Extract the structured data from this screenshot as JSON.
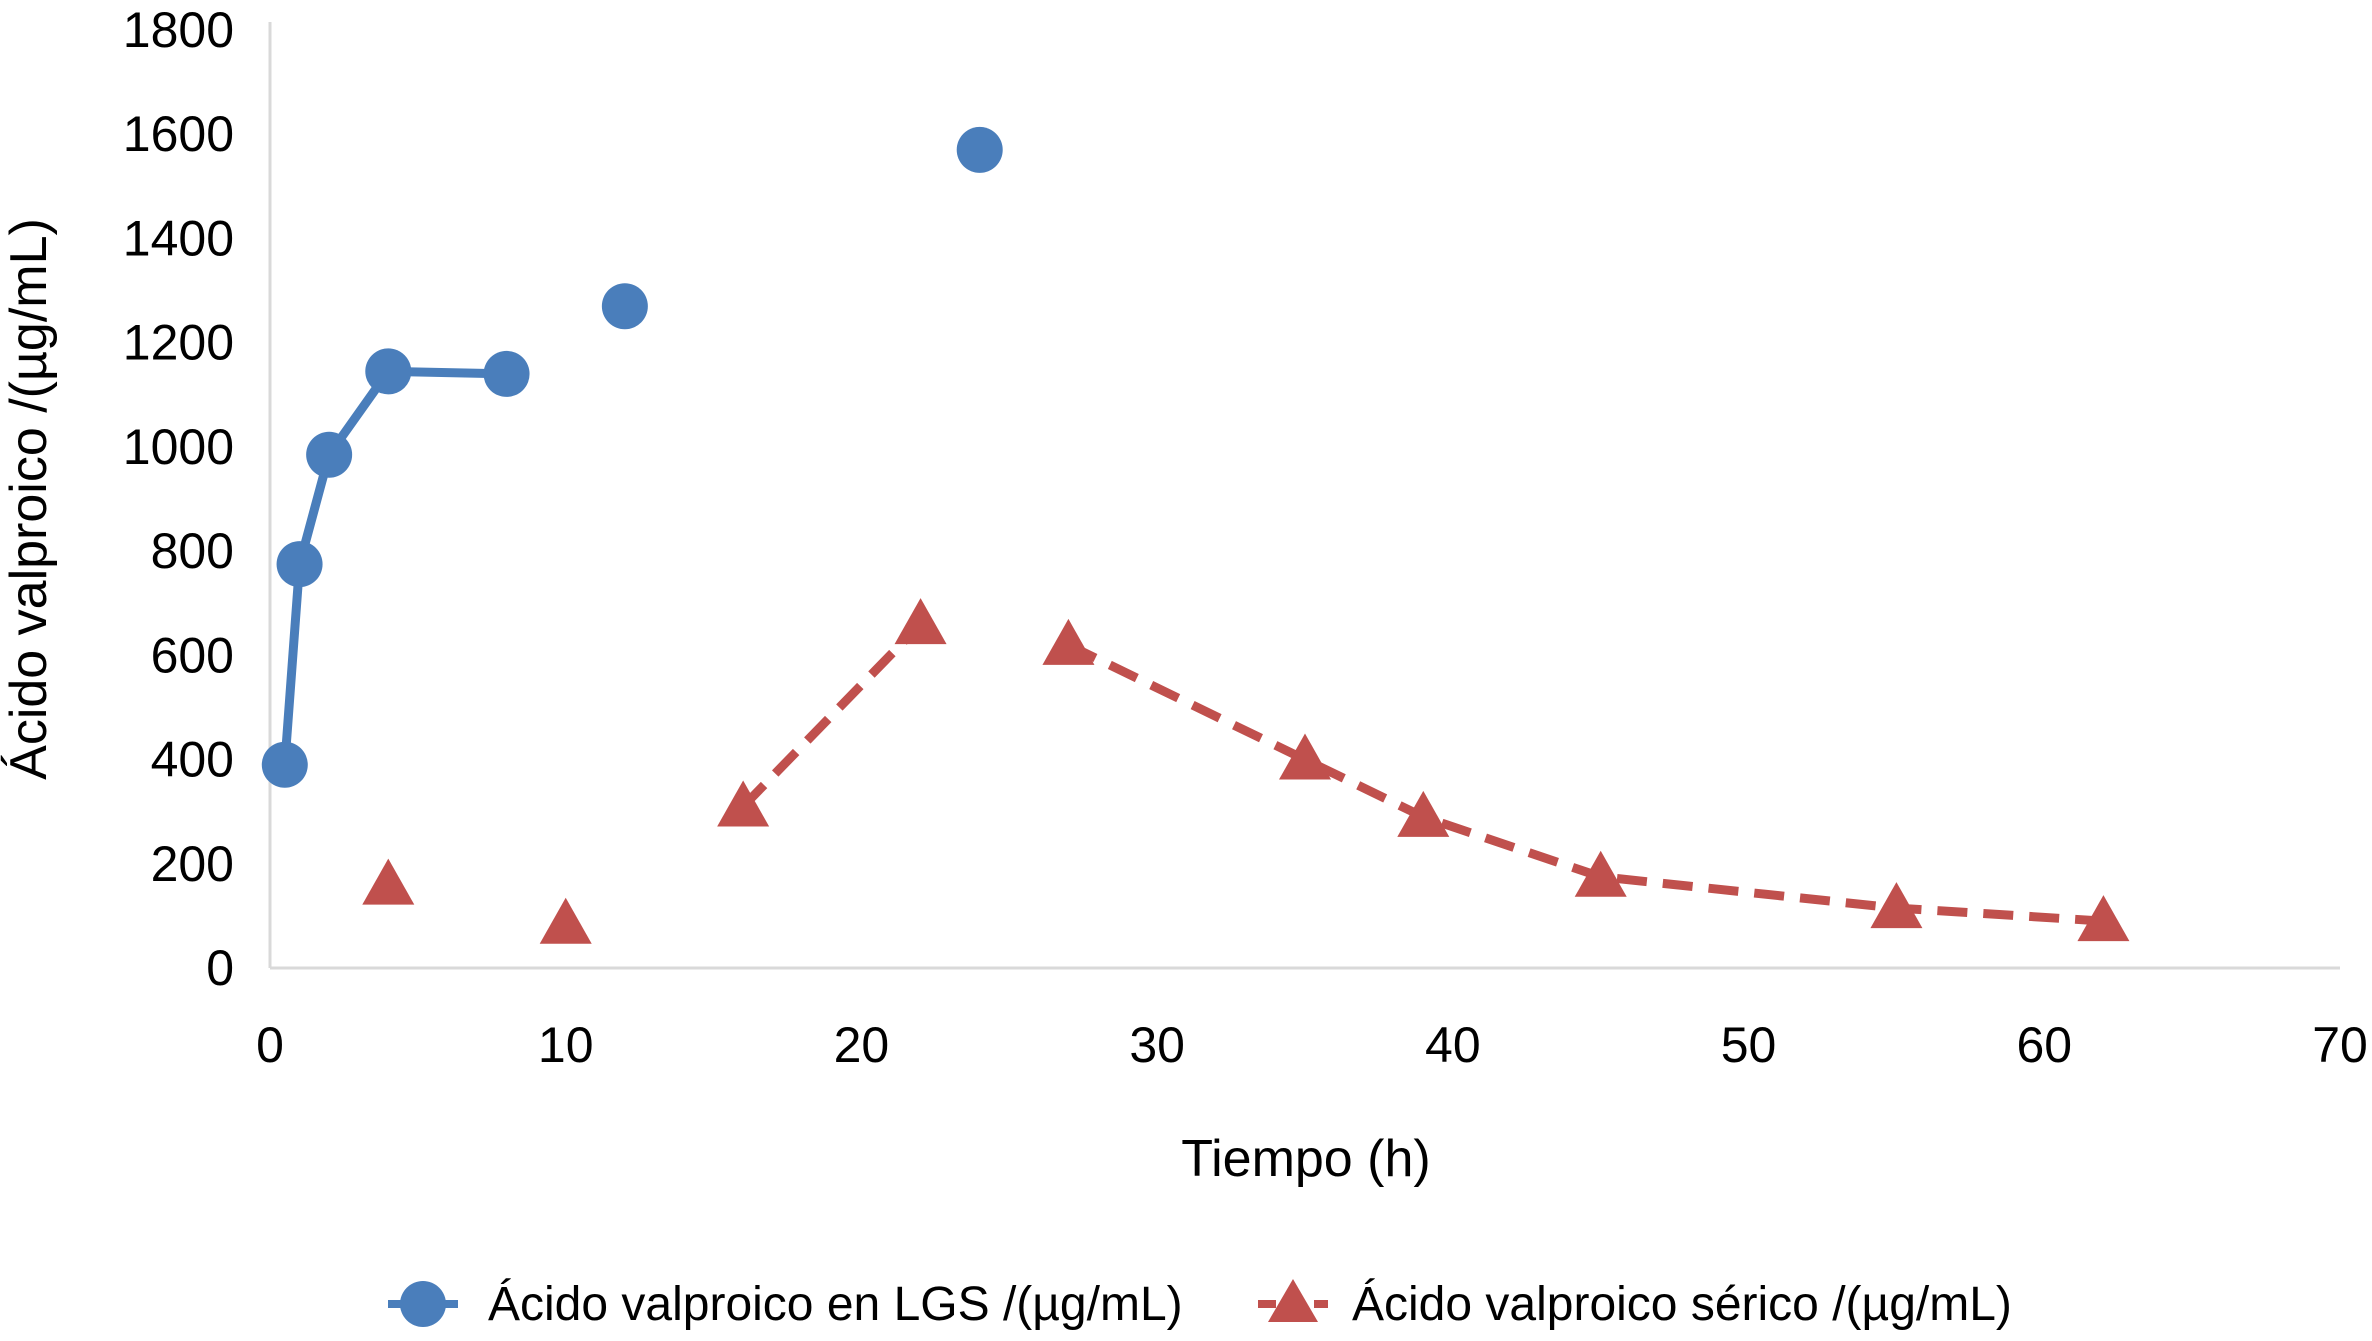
{
  "chart_data": {
    "type": "scatter",
    "title": "",
    "xlabel": "Tiempo (h)",
    "ylabel": "Ácido valproico /(µg/mL)",
    "xlim": [
      0,
      70
    ],
    "ylim": [
      0,
      1800
    ],
    "x_ticks": [
      "0",
      "10",
      "20",
      "30",
      "40",
      "50",
      "60",
      "70"
    ],
    "y_ticks": [
      "0",
      "200",
      "400",
      "600",
      "800",
      "1000",
      "1200",
      "1400",
      "1600",
      "1800"
    ],
    "grid": false,
    "legend_position": "bottom",
    "series": [
      {
        "name": "Ácido valproico en LGS /(µg/mL)",
        "color": "#4a7ebb",
        "marker": "circle",
        "line_style": "solid",
        "points": [
          {
            "x": 0.5,
            "y": 390
          },
          {
            "x": 1,
            "y": 775
          },
          {
            "x": 2,
            "y": 985
          },
          {
            "x": 4,
            "y": 1145
          },
          {
            "x": 8,
            "y": 1140
          },
          {
            "x": 12,
            "y": 1270
          },
          {
            "x": 24,
            "y": 1570
          }
        ],
        "connected_points": 5
      },
      {
        "name": "Ácido valproico sérico /(µg/mL)",
        "color": "#c0504d",
        "marker": "triangle",
        "line_style": "dashed",
        "points": [
          {
            "x": 4,
            "y": 160
          },
          {
            "x": 10,
            "y": 85
          },
          {
            "x": 16,
            "y": 310
          },
          {
            "x": 22,
            "y": 660
          },
          {
            "x": 27,
            "y": 620
          },
          {
            "x": 35,
            "y": 400
          },
          {
            "x": 39,
            "y": 290
          },
          {
            "x": 45,
            "y": 175
          },
          {
            "x": 55,
            "y": 115
          },
          {
            "x": 62,
            "y": 90
          }
        ],
        "connected_segments": [
          [
            2,
            3
          ],
          [
            4,
            9
          ]
        ]
      }
    ]
  }
}
